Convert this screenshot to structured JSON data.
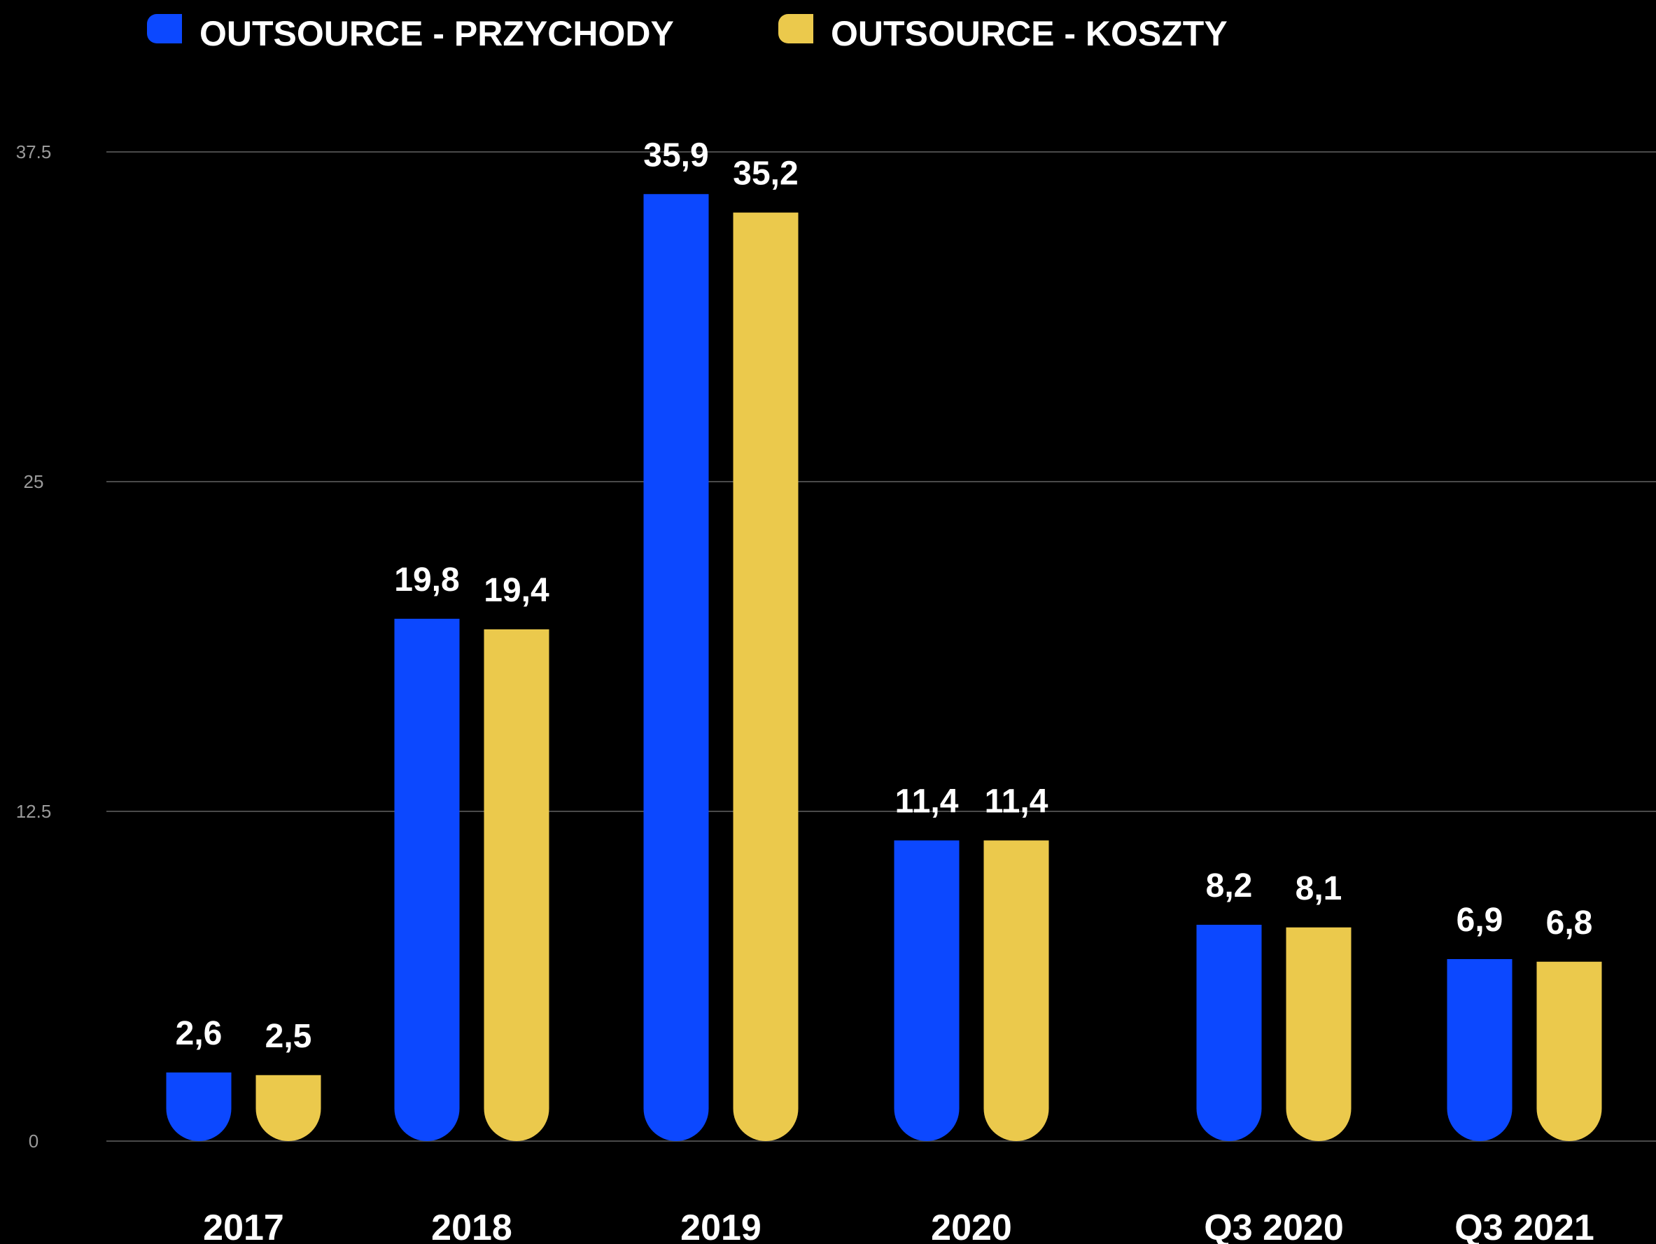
{
  "chart_data": {
    "type": "bar",
    "categories": [
      "2017",
      "2018",
      "2019",
      "2020",
      "Q3 2020",
      "Q3 2021"
    ],
    "series": [
      {
        "name": "OUTSOURCE - PRZYCHODY",
        "color": "#0c48ff",
        "values": [
          2.6,
          19.8,
          35.9,
          11.4,
          8.2,
          6.9
        ],
        "labels": [
          "2,6",
          "19,8",
          "35,9",
          "11,4",
          "8,2",
          "6,9"
        ]
      },
      {
        "name": "OUTSOURCE - KOSZTY",
        "color": "#ebc94c",
        "values": [
          2.5,
          19.4,
          35.2,
          11.4,
          8.1,
          6.8
        ],
        "labels": [
          "2,5",
          "19,4",
          "35,2",
          "11,4",
          "8,1",
          "6,8"
        ]
      }
    ],
    "yticks": [
      "0",
      "12.5",
      "25",
      "37.5"
    ],
    "ylim": [
      0,
      37.5
    ],
    "grid": true,
    "legend_position": "top"
  }
}
